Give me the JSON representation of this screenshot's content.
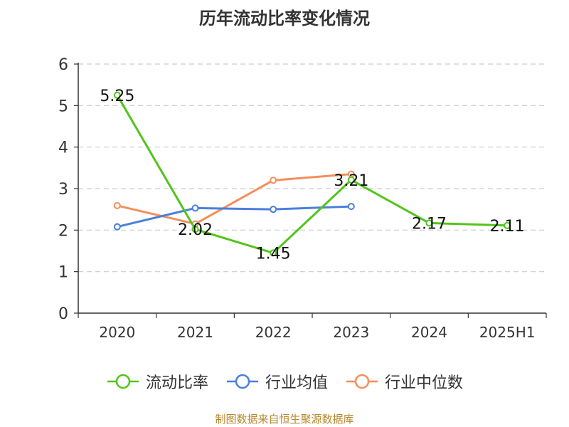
{
  "title": "历年流动比率变化情况",
  "source_note": "制图数据来自恒生聚源数据库",
  "colors": {
    "series1": "#52c41a",
    "series2": "#4a7fdc",
    "series3": "#f58e5a",
    "grid": "#cccccc",
    "axis": "#333333"
  },
  "chart_data": {
    "type": "line",
    "categories": [
      "2020",
      "2021",
      "2022",
      "2023",
      "2024",
      "2025H1"
    ],
    "ylim": [
      0,
      6
    ],
    "yticks": [
      0,
      1,
      2,
      3,
      4,
      5,
      6
    ],
    "grid": true,
    "legend_position": "bottom",
    "series": [
      {
        "name": "流动比率",
        "values": [
          5.25,
          2.02,
          1.45,
          3.21,
          2.17,
          2.11
        ],
        "labels": [
          "5.25",
          "2.02",
          "1.45",
          "3.21",
          "2.17",
          "2.11"
        ]
      },
      {
        "name": "行业均值",
        "values": [
          2.08,
          2.53,
          2.5,
          2.57,
          null,
          null
        ]
      },
      {
        "name": "行业中位数",
        "values": [
          2.59,
          2.15,
          3.2,
          3.35,
          null,
          null
        ]
      }
    ]
  }
}
